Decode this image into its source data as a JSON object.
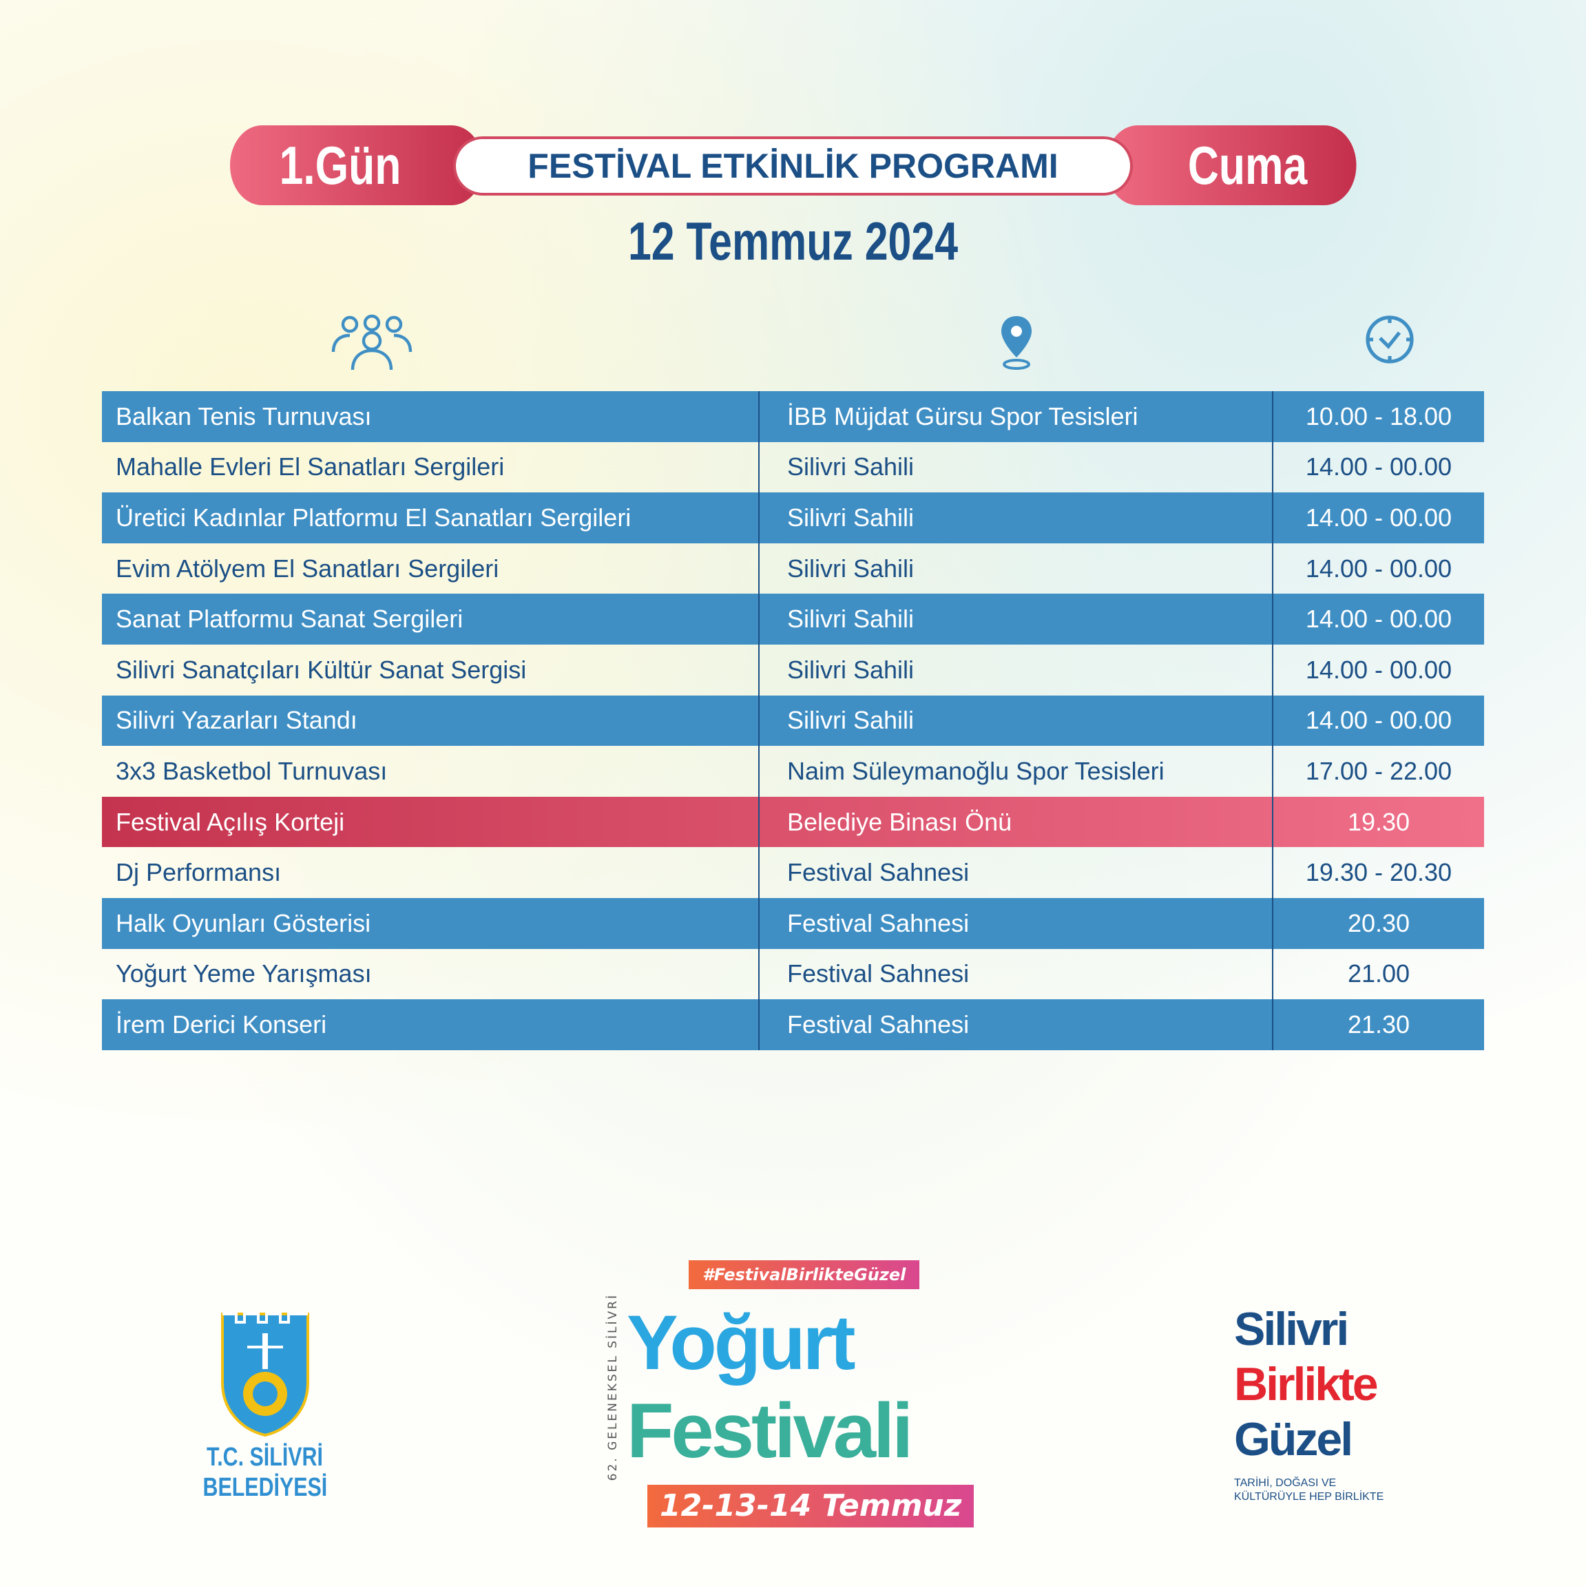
{
  "header": {
    "day": "1.Gün",
    "title": "FESTİVAL ETKİNLİK PROGRAMI",
    "weekday": "Cuma",
    "date": "12 Temmuz 2024"
  },
  "column_icons": [
    "people-icon",
    "location-pin-icon",
    "clock-icon"
  ],
  "colors": {
    "blue": "#3f8fc5",
    "dark_blue": "#1b4f85",
    "red": "#c5344f",
    "pink": "#f0708a"
  },
  "rows": [
    {
      "event": "Balkan Tenis Turnuvası",
      "place": "İBB Müjdat Gürsu Spor Tesisleri",
      "time": "10.00 - 18.00",
      "style": "blue"
    },
    {
      "event": "Mahalle Evleri El Sanatları Sergileri",
      "place": "Silivri Sahili",
      "time": "14.00 - 00.00",
      "style": "white"
    },
    {
      "event": "Üretici Kadınlar Platformu El Sanatları Sergileri",
      "place": "Silivri Sahili",
      "time": "14.00 - 00.00",
      "style": "blue"
    },
    {
      "event": "Evim Atölyem El Sanatları Sergileri",
      "place": "Silivri Sahili",
      "time": "14.00 - 00.00",
      "style": "white"
    },
    {
      "event": "Sanat Platformu Sanat Sergileri",
      "place": "Silivri Sahili",
      "time": "14.00 - 00.00",
      "style": "blue"
    },
    {
      "event": "Silivri Sanatçıları Kültür Sanat Sergisi",
      "place": "Silivri Sahili",
      "time": "14.00 - 00.00",
      "style": "white"
    },
    {
      "event": "Silivri Yazarları Standı",
      "place": "Silivri Sahili",
      "time": "14.00 - 00.00",
      "style": "blue"
    },
    {
      "event": "3x3 Basketbol Turnuvası",
      "place": "Naim Süleymanoğlu Spor Tesisleri",
      "time": "17.00 - 22.00",
      "style": "white"
    },
    {
      "event": "Festival Açılış Korteji",
      "place": "Belediye Binası Önü",
      "time": "19.30",
      "style": "red"
    },
    {
      "event": "Dj Performansı",
      "place": "Festival Sahnesi",
      "time": "19.30 - 20.30",
      "style": "white"
    },
    {
      "event": "Halk Oyunları Gösterisi",
      "place": "Festival Sahnesi",
      "time": "20.30",
      "style": "blue"
    },
    {
      "event": "Yoğurt Yeme Yarışması",
      "place": "Festival Sahnesi",
      "time": "21.00",
      "style": "white"
    },
    {
      "event": "İrem Derici Konseri",
      "place": "Festival Sahnesi",
      "time": "21.30",
      "style": "blue"
    }
  ],
  "logos": {
    "municipality": {
      "line1": "T.C. SİLİVRİ",
      "line2": "BELEDİYESİ"
    },
    "festival": {
      "hashtag": "#FestivalBirlikteGüzel",
      "edition": "62. GELENEKSEL SİLİVRİ",
      "word1": "Yoğurt",
      "word2": "Festivali",
      "dates": "12-13-14 Temmuz"
    },
    "slogan": {
      "line1": "Silivri",
      "line2": "Birlikte",
      "line3": "Güzel",
      "tagline1": "TARİHİ, DOĞASI VE",
      "tagline2": "KÜLTÜRÜYLE HEP BİRLİKTE"
    }
  }
}
